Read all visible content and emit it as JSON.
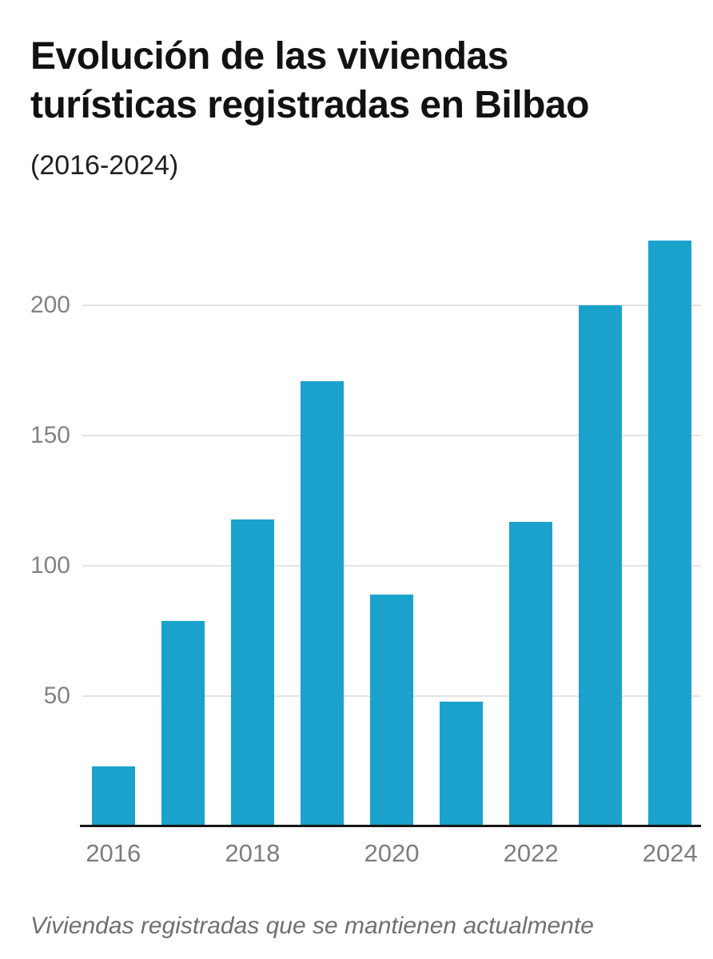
{
  "header": {
    "title": "Evolución de las viviendas turísticas registradas en Bilbao",
    "subtitle": "(2016-2024)"
  },
  "footer": {
    "note": "Viviendas registradas que se mantienen actualmente"
  },
  "colors": {
    "bar": "#1aa2cc",
    "grid": "#e4e4e4",
    "axis": "#161616",
    "y_tick_text": "#828282",
    "x_tick_text": "#7d7d7d",
    "title_text": "#121212",
    "footer_text": "#6f6f6f"
  },
  "chart_data": {
    "type": "bar",
    "title": "Evolución de las viviendas turísticas registradas en Bilbao",
    "subtitle": "(2016-2024)",
    "categories": [
      "2016",
      "2017",
      "2018",
      "2019",
      "2020",
      "2021",
      "2022",
      "2023",
      "2024"
    ],
    "values": [
      23,
      79,
      118,
      171,
      89,
      48,
      117,
      200,
      225
    ],
    "xlabel": "",
    "ylabel": "",
    "x_axis_tick_labels": [
      "2016",
      "2018",
      "2020",
      "2022",
      "2024"
    ],
    "y_axis_ticks": [
      50,
      100,
      150,
      200
    ],
    "ylim": [
      0,
      225
    ],
    "grid": "horizontal-only",
    "legend": "none",
    "note": "Viviendas registradas que se mantienen actualmente"
  }
}
